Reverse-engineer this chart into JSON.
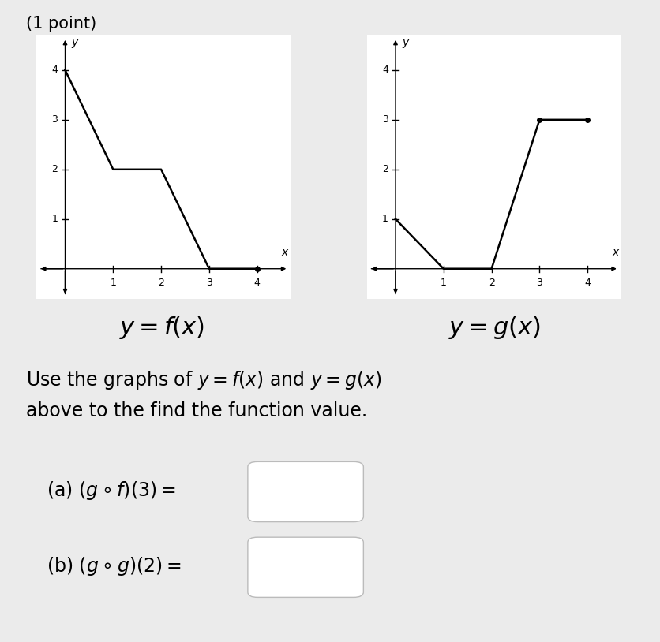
{
  "background_color": "#ebebeb",
  "graph_bg": "#ffffff",
  "title": "(1 point)",
  "title_fontsize": 15,
  "f_x": [
    0,
    1,
    2,
    3,
    4
  ],
  "f_y": [
    4,
    2,
    2,
    0,
    0
  ],
  "g_x": [
    0,
    1,
    2,
    3,
    4
  ],
  "g_y": [
    1,
    0,
    0,
    3,
    3
  ],
  "xlim": [
    -0.6,
    4.7
  ],
  "ylim": [
    -0.6,
    4.7
  ],
  "xticks": [
    1,
    2,
    3,
    4
  ],
  "yticks": [
    1,
    2,
    3,
    4
  ],
  "line_color": "#000000",
  "line_width": 1.8,
  "text_color": "#000000",
  "label_fontsize": 22,
  "tick_fontsize": 9,
  "axis_label_fontsize": 10,
  "instruction_fontsize": 17,
  "parts_fontsize": 17
}
